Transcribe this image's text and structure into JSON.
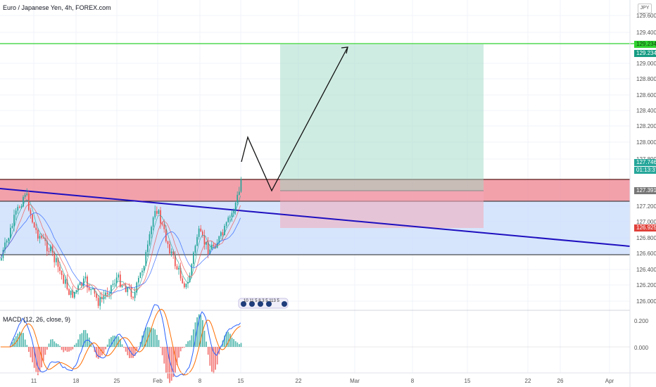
{
  "header": {
    "title": "Euro / Japanese Yen, 4h, FOREX.com",
    "currency": "JPY"
  },
  "macd": {
    "title": "MACD (12, 26, close, 9)",
    "axis_ticks": [
      "0.200",
      "0.000"
    ]
  },
  "price_axis": {
    "ticks": [
      "129.600",
      "129.400",
      "129.000",
      "128.800",
      "128.600",
      "128.400",
      "128.200",
      "128.000",
      "127.800",
      "127.200",
      "127.000",
      "126.800",
      "126.600",
      "126.400",
      "126.200",
      "126.000"
    ]
  },
  "time_axis": {
    "labels": [
      "11",
      "18",
      "25",
      "Feb",
      "8",
      "15",
      "22",
      "Mar",
      "8",
      "15",
      "22",
      "26",
      "Apr"
    ]
  },
  "badges": {
    "target_top": "129.234",
    "target": "129.234",
    "current": "127.746",
    "countdown": "01:13:37",
    "entry": "127.391",
    "stop": "126.925"
  },
  "events_label": "10 11 5 8 3 5 113 5",
  "colors": {
    "up_candle": "#26a69a",
    "down_candle": "#ef5350",
    "trendline": "#1e0fbf",
    "resistance_zone": "#f28b96",
    "support_zone": "#cfe0fb",
    "profit_zone": "#c9ebe3",
    "target_line": "#2fd12f",
    "macd_line": "#2962ff",
    "signal_line": "#ff6d00"
  },
  "chart_data": {
    "type": "candlestick",
    "title": "Euro / Japanese Yen, 4h, FOREX.com",
    "y_range": [
      125.95,
      129.75
    ],
    "target_level": 129.234,
    "entry_level": 127.391,
    "stop_level": 126.925,
    "current_price": 127.746,
    "resistance_zone": [
      127.25,
      127.55
    ],
    "support_zone": [
      126.6,
      127.25
    ],
    "projection_path": [
      127.746,
      128.05,
      127.391,
      129.234
    ]
  }
}
